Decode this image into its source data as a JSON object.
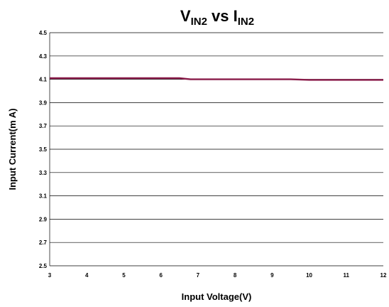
{
  "chart_data": {
    "type": "line",
    "title": {
      "parts": [
        {
          "text": "V",
          "sub": false
        },
        {
          "text": "IN2",
          "sub": true
        },
        {
          "text": " vs I",
          "sub": false
        },
        {
          "text": "IN2",
          "sub": true
        }
      ]
    },
    "xlabel": "Input Voltage(V)",
    "ylabel": "Input Current(m A)",
    "xlim": [
      3,
      12
    ],
    "ylim": [
      2.5,
      4.5
    ],
    "x_ticks": [
      "3",
      "4",
      "5",
      "6",
      "7",
      "8",
      "9",
      "10",
      "11",
      "12"
    ],
    "y_ticks": [
      "2.5",
      "2.7",
      "2.9",
      "3.1",
      "3.3",
      "3.5",
      "3.7",
      "3.9",
      "4.1",
      "4.3",
      "4.5"
    ],
    "y_tick_values": [
      2.5,
      2.7,
      2.9,
      3.1,
      3.3,
      3.5,
      3.7,
      3.9,
      4.1,
      4.3,
      4.5
    ],
    "x_tick_values": [
      3,
      4,
      5,
      6,
      7,
      8,
      9,
      10,
      11,
      12
    ],
    "grid": "horizontal",
    "series_color": "#8a1c4a",
    "series": [
      {
        "x": [
          3,
          4,
          5,
          6,
          6.5,
          6.8,
          7,
          8,
          9,
          9.5,
          10,
          11,
          12
        ],
        "y": [
          4.11,
          4.11,
          4.11,
          4.11,
          4.11,
          4.1,
          4.1,
          4.1,
          4.1,
          4.1,
          4.095,
          4.095,
          4.095
        ]
      }
    ]
  }
}
